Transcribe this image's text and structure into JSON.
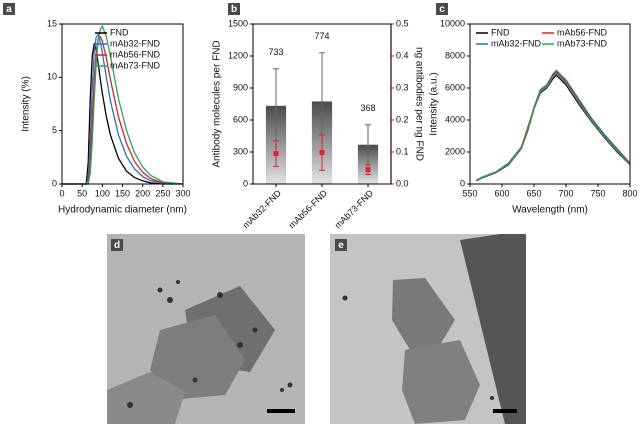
{
  "chart_data": [
    {
      "type": "line",
      "panel_label": "a",
      "xlabel": "Hydrodynamic diameter (nm)",
      "ylabel": "Intensity (%)",
      "xlim": [
        0,
        300
      ],
      "xticks": [
        0,
        50,
        100,
        150,
        200,
        250,
        300
      ],
      "ylim": [
        0,
        15
      ],
      "yticks": [
        0,
        5,
        10,
        15
      ],
      "legend": "upper right",
      "legend_columns": 1,
      "x": [
        0,
        50,
        60,
        65,
        70,
        75,
        80,
        85,
        90,
        95,
        100,
        110,
        120,
        140,
        160,
        180,
        200,
        220,
        250,
        300
      ],
      "series": [
        {
          "name": "FND",
          "color": "#000000",
          "values": [
            0,
            0,
            0,
            2,
            8,
            12,
            13.2,
            12.5,
            11.2,
            9.8,
            8.5,
            6.3,
            4.6,
            2.4,
            1.2,
            0.6,
            0.3,
            0.1,
            0,
            0
          ]
        },
        {
          "name": "mAb32-FND",
          "color": "#2a6fc9",
          "values": [
            0,
            0,
            0,
            0.5,
            4,
            9,
            12.5,
            13.8,
            14,
            13.3,
            12.3,
            10,
            7.8,
            4.6,
            2.6,
            1.4,
            0.7,
            0.3,
            0.1,
            0
          ]
        },
        {
          "name": "mAb56-FND",
          "color": "#e0202a",
          "values": [
            0,
            0,
            0,
            0,
            2,
            6,
            10,
            12.5,
            13.6,
            13.8,
            13.4,
            11.8,
            9.8,
            6.3,
            3.8,
            2.1,
            1.1,
            0.5,
            0.1,
            0
          ]
        },
        {
          "name": "mAb73-FND",
          "color": "#2aa55a",
          "values": [
            0,
            0,
            0,
            0,
            1,
            4,
            8,
            11.5,
            13.5,
            14.5,
            14.8,
            13.8,
            12,
            8,
            5,
            2.9,
            1.6,
            0.8,
            0.2,
            0
          ]
        }
      ]
    },
    {
      "type": "bar",
      "panel_label": "b",
      "ylabel": "Antibody molecules per FND",
      "y2label": "ng antibodies per ng FND",
      "categories": [
        "mAb32-FND",
        "mAb56-FND",
        "mAb73-FND"
      ],
      "ylim": [
        0,
        1500
      ],
      "yticks": [
        0,
        300,
        600,
        900,
        1200,
        1500
      ],
      "y2lim": [
        0,
        0.5
      ],
      "y2ticks": [
        {
          "value": 0,
          "label": "0.0"
        },
        0.1,
        0.2,
        0.3,
        0.4,
        0.5
      ],
      "y2color": "#e0202a",
      "series": [
        {
          "color": "#4a4a4a",
          "values": [
            733,
            774,
            368
          ],
          "errors": [
            347,
            456,
            187
          ]
        },
        {
          "color": "#e0202a",
          "axis": "y2",
          "values": [
            0.095,
            0.098,
            0.045
          ],
          "errors": [
            0.04,
            0.055,
            0.015
          ]
        }
      ]
    },
    {
      "type": "line",
      "panel_label": "c",
      "xlabel": "Wavelength (nm)",
      "ylabel": "Intensity (a.u.)",
      "xlim": [
        550,
        800
      ],
      "xticks": [
        550,
        600,
        650,
        700,
        750,
        800
      ],
      "ylim": [
        0,
        10000
      ],
      "yticks": [
        0,
        2000,
        4000,
        6000,
        8000,
        10000
      ],
      "legend": "upper left",
      "legend_columns": 2,
      "x": [
        560,
        570,
        590,
        610,
        630,
        640,
        650,
        660,
        670,
        680,
        685,
        690,
        700,
        720,
        740,
        760,
        780,
        800
      ],
      "series": [
        {
          "name": "FND",
          "color": "#000000",
          "values": [
            200,
            400,
            700,
            1200,
            2200,
            3300,
            4700,
            5700,
            6000,
            6600,
            6800,
            6600,
            6200,
            5000,
            3900,
            2900,
            2000,
            1200
          ]
        },
        {
          "name": "mAb32-FND",
          "color": "#2a6fc9",
          "values": [
            250,
            450,
            750,
            1300,
            2300,
            3400,
            4800,
            5900,
            6200,
            6900,
            7100,
            6900,
            6500,
            5300,
            4100,
            3100,
            2200,
            1300
          ]
        },
        {
          "name": "mAb56-FND",
          "color": "#e0202a",
          "values": [
            220,
            430,
            720,
            1250,
            2250,
            3500,
            4750,
            5800,
            6100,
            6800,
            7000,
            6800,
            6400,
            5200,
            4000,
            3000,
            2100,
            1250
          ]
        },
        {
          "name": "mAb73-FND",
          "color": "#2aa55a",
          "values": [
            230,
            420,
            730,
            1250,
            2200,
            3350,
            4700,
            5750,
            6050,
            6700,
            6900,
            6700,
            6300,
            5100,
            3950,
            2950,
            2050,
            1200
          ]
        }
      ]
    }
  ],
  "images": [
    {
      "label": "d"
    },
    {
      "label": "e"
    }
  ]
}
